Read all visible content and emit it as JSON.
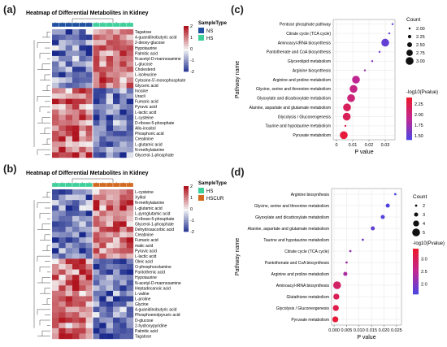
{
  "panels": {
    "a": "(a)",
    "b": "(b)",
    "c": "(c)",
    "d": "(d)"
  },
  "chart_data": [
    {
      "id": "a",
      "type": "heatmap",
      "title": "Heatmap of Differential Metabolites in Kidney",
      "annotation_title": "SampleType",
      "groups": [
        {
          "name": "NS",
          "color": "#1f4fa0",
          "count": 6
        },
        {
          "name": "HS",
          "color": "#3ecf9a",
          "count": 6
        }
      ],
      "colorbar": {
        "ticks": [
          2,
          1,
          0,
          -1,
          -2
        ],
        "low": "#1a2a8c",
        "mid": "#f5f5f5",
        "high": "#b0141e"
      },
      "rows": [
        "Tagatose",
        "4-guanidinobutyric acid",
        "2-deoxy-glucose",
        "Hypotaurine",
        "Palmitic acid",
        "N-acetyl-D-mannosamine",
        "L-glucose",
        "Cholesterol",
        "L-isoleucine",
        "Cytosine-5'-monophosphate",
        "Glyceric acid",
        "Inosine",
        "Uracil",
        "Fumaric acid",
        "Pyruvic acid",
        "L-lactic acid",
        "L-cysteine",
        "D-ribose-5-phosphate",
        "Allo-inositol",
        "Phosphoric acid",
        "Creatinine",
        "L-glutamic acid",
        "N-methylalanine",
        "Glycerol-1-phosphate"
      ]
    },
    {
      "id": "b",
      "type": "heatmap",
      "title": "Heatmap of Differential Metabolites in Kidney",
      "annotation_title": "SampleType",
      "groups": [
        {
          "name": "HS",
          "color": "#3ecf9a",
          "count": 6
        },
        {
          "name": "HSCUR",
          "color": "#d2691e",
          "count": 6
        }
      ],
      "colorbar": {
        "ticks": [
          2,
          1,
          0,
          -1,
          -2
        ],
        "low": "#1a2a8c",
        "mid": "#f5f5f5",
        "high": "#b0141e"
      },
      "rows": [
        "L-cysteine",
        "Xylitol",
        "N-methylalanine",
        "L-glutamic acid",
        "L-pyroglutamic acid",
        "D-ribose-5-phosphate",
        "Glycerol-1-phosphate",
        "Dehydroascorbic acid",
        "Creatinine",
        "Fumaric acid",
        "malic acid",
        "Pyruvic acid",
        "L-lactic acid",
        "Oleic acid",
        "O-phosphocolamine",
        "Pantothenic acid",
        "Hypotaurine",
        "N-acetyl-D-mannosamine",
        "Heptadecanoic acid",
        "L-valine",
        "L-proline",
        "Glycine",
        "4-guanidinobutyric acid",
        "Phosphoenolpyruvic acid",
        "D-glucose",
        "2-hydroxypyridine",
        "Palmitic acid",
        "Tagatose"
      ]
    },
    {
      "id": "c",
      "type": "scatter",
      "xlabel": "P value",
      "ylabel": "Pathway name",
      "xticks": [
        0,
        0.01,
        0.02,
        0.03
      ],
      "xtick_labels": [
        "0",
        "0.01",
        "0.02",
        "0.03"
      ],
      "xlim": [
        -0.002,
        0.036
      ],
      "size_legend": {
        "title": "Count",
        "values": [
          2.0,
          2.25,
          2.5,
          2.75,
          3.0
        ],
        "labels": [
          "2.00",
          "2.25",
          "2.50",
          "2.75",
          "3.00"
        ]
      },
      "color_legend": {
        "title": "-log10(Pvalue)",
        "ticks": [
          2.25,
          2.0,
          1.75,
          1.5
        ],
        "labels": [
          "2.25",
          "2.00",
          "1.75",
          "1.50"
        ],
        "min": 1.4,
        "max": 2.4
      },
      "points": [
        {
          "pathway": "Pentose phosphate pathway",
          "p": 0.0345,
          "count": 2,
          "logp": 1.46
        },
        {
          "pathway": "Citrate cycle (TCA cycle)",
          "p": 0.0325,
          "count": 2,
          "logp": 1.49
        },
        {
          "pathway": "Aminoacyl-tRNA biosynthesis",
          "p": 0.03,
          "count": 3,
          "logp": 1.52
        },
        {
          "pathway": "Pantothenate and CoA biosynthesis",
          "p": 0.0265,
          "count": 2,
          "logp": 1.58
        },
        {
          "pathway": "Glycerolipid metabolism",
          "p": 0.022,
          "count": 2,
          "logp": 1.66
        },
        {
          "pathway": "Arginine biosynthesis",
          "p": 0.0175,
          "count": 2,
          "logp": 1.76
        },
        {
          "pathway": "Arginine and proline metabolism",
          "p": 0.012,
          "count": 3,
          "logp": 1.92
        },
        {
          "pathway": "Glycine, serine and threonine metabolism",
          "p": 0.0105,
          "count": 3,
          "logp": 1.98
        },
        {
          "pathway": "Glyoxylate and dicarboxylate metabolism",
          "p": 0.009,
          "count": 3,
          "logp": 2.05
        },
        {
          "pathway": "Alanine, aspartate and glutamate metabolism",
          "p": 0.0065,
          "count": 3,
          "logp": 2.18
        },
        {
          "pathway": "Glycolysis / Gluconeogenesis",
          "p": 0.0063,
          "count": 3,
          "logp": 2.2
        },
        {
          "pathway": "Taurine and hypotaurine metabolism",
          "p": 0.0055,
          "count": 2,
          "logp": 2.26
        },
        {
          "pathway": "Pyruvate metabolism",
          "p": 0.0045,
          "count": 3,
          "logp": 2.34
        }
      ]
    },
    {
      "id": "d",
      "type": "scatter",
      "xlabel": "P value",
      "ylabel": "Pathway name",
      "xticks": [
        0,
        0.005,
        0.01,
        0.015,
        0.02,
        0.025
      ],
      "xtick_labels": [
        "0.000",
        "0.005",
        "0.010",
        "0.015",
        "0.020",
        "0.025"
      ],
      "xlim": [
        -0.001,
        0.027
      ],
      "size_legend": {
        "title": "Count",
        "values": [
          2,
          3,
          4,
          5
        ],
        "labels": [
          "2",
          "3",
          "4",
          "5"
        ]
      },
      "color_legend": {
        "title": "-log10(Pvalue)",
        "ticks": [
          3.0,
          2.5,
          2.0
        ],
        "labels": [
          "3.0",
          "2.5",
          "2.0"
        ],
        "min": 1.6,
        "max": 3.4
      },
      "points": [
        {
          "pathway": "Arginine biosynthesis",
          "p": 0.0245,
          "count": 2,
          "logp": 1.61
        },
        {
          "pathway": "Glycine, serine and threonine metabolism",
          "p": 0.0215,
          "count": 3,
          "logp": 1.67
        },
        {
          "pathway": "Glyoxylate and dicarboxylate metabolism",
          "p": 0.0195,
          "count": 3,
          "logp": 1.71
        },
        {
          "pathway": "Alanine, aspartate and glutamate metabolism",
          "p": 0.0155,
          "count": 3,
          "logp": 1.81
        },
        {
          "pathway": "Taurine and hypotaurine metabolism",
          "p": 0.0115,
          "count": 2,
          "logp": 1.94
        },
        {
          "pathway": "Citrate cycle (TCA cycle)",
          "p": 0.0065,
          "count": 2,
          "logp": 2.19
        },
        {
          "pathway": "Pantothenate and CoA biosynthesis",
          "p": 0.005,
          "count": 2,
          "logp": 2.3
        },
        {
          "pathway": "Arginine and proline metabolism",
          "p": 0.0045,
          "count": 3,
          "logp": 2.35
        },
        {
          "pathway": "Aminoacyl-tRNA biosynthesis",
          "p": 0.0012,
          "count": 5,
          "logp": 2.92
        },
        {
          "pathway": "Glutathione metabolism",
          "p": 0.0009,
          "count": 4,
          "logp": 3.05
        },
        {
          "pathway": "Glycolysis / Gluconeogenesis",
          "p": 0.0007,
          "count": 4,
          "logp": 3.15
        },
        {
          "pathway": "Pyruvate metabolism",
          "p": 0.0005,
          "count": 4,
          "logp": 3.3
        }
      ]
    }
  ]
}
